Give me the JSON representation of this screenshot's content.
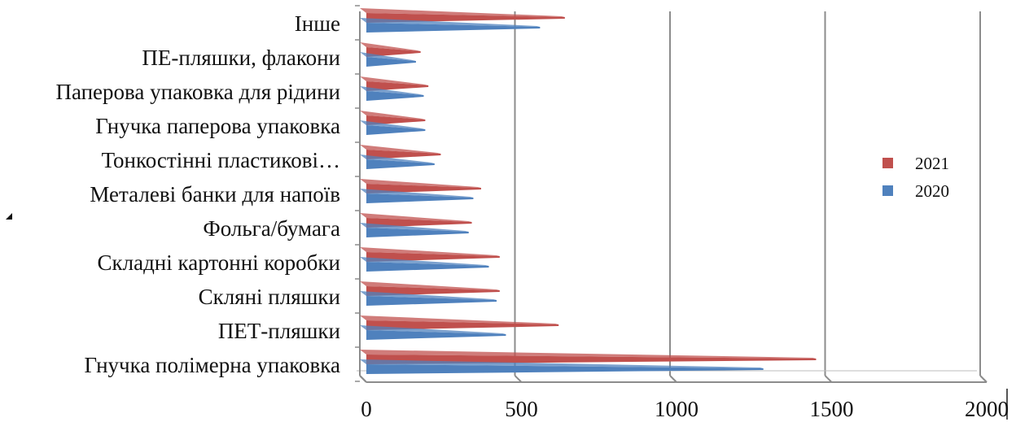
{
  "chart_data": {
    "type": "bar",
    "orientation": "horizontal",
    "categories": [
      "Гнучка полімерна упаковка",
      "ПЕТ-пляшки",
      "Скляні пляшки",
      "Складні картонні коробки",
      "Фольга/бумага",
      "Металеві банки для напоїв",
      "Тонкостінні пластикові…",
      "Гнучка паперова упаковка",
      "Паперова упаковка для рідини",
      "ПЕ-пляшки, флакони",
      "Інше"
    ],
    "series": [
      {
        "name": "2021",
        "color": "#c0504d",
        "values": [
          1450,
          620,
          430,
          430,
          340,
          370,
          240,
          190,
          200,
          175,
          640
        ]
      },
      {
        "name": "2020",
        "color": "#4f81bd",
        "values": [
          1280,
          450,
          420,
          395,
          330,
          345,
          220,
          190,
          185,
          160,
          560
        ]
      }
    ],
    "xlim": [
      0,
      2000
    ],
    "xticks": [
      "0",
      "500",
      "1000",
      "1500",
      "2000"
    ],
    "grid": true,
    "legend_position": "right"
  }
}
